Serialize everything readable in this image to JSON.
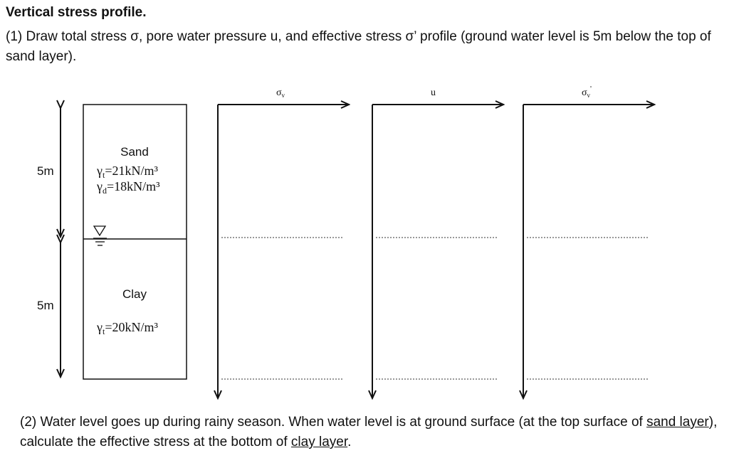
{
  "title": "Vertical stress profile.",
  "question1": "(1) Draw total stress σ, pore water pressure u, and effective stress σ’ profile (ground water level is 5m below the top of sand layer).",
  "soil": {
    "sand": {
      "thickness": "5m",
      "name": "Sand",
      "unit_weights": [
        {
          "symbol": "γ",
          "sub": "t",
          "text": "=21kN/m³"
        },
        {
          "symbol": "γ",
          "sub": "d",
          "text": "=18kN/m³"
        }
      ]
    },
    "clay": {
      "thickness": "5m",
      "name": "Clay",
      "unit_weights": [
        {
          "symbol": "γ",
          "sub": "t",
          "text": "=20kN/m³"
        }
      ]
    }
  },
  "profiles": [
    {
      "symbol": "σ",
      "sub": "v",
      "sup": ""
    },
    {
      "symbol": "u",
      "sub": "",
      "sup": ""
    },
    {
      "symbol": "σ",
      "sub": "v",
      "sup": "'"
    }
  ],
  "question2": {
    "parts": [
      {
        "text": "(2) Water level goes up during rainy season. When water level is at ground surface (at the top surface of ",
        "underline": false
      },
      {
        "text": "sand layer",
        "underline": true
      },
      {
        "text": "), calculate the effective stress at the bottom of ",
        "underline": false
      },
      {
        "text": "clay layer",
        "underline": true
      },
      {
        "text": ".",
        "underline": false
      }
    ]
  }
}
